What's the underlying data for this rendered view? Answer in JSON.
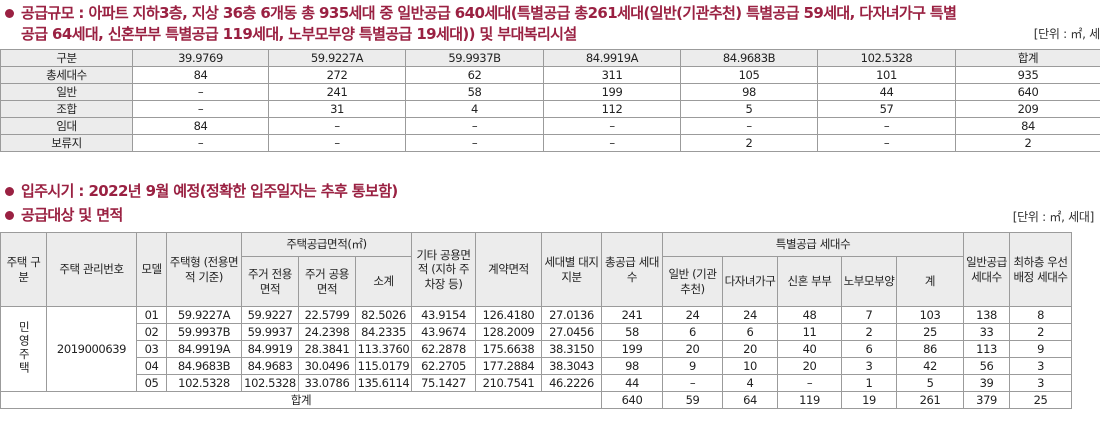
{
  "scale": {
    "line1": "공급규모 : 아파트 지하3층, 지상 36층 6개동 총 935세대 중 일반공급 640세대(특별공급 총261세대(일반(기관추천) 특별공급 59세대, 다자녀가구 특별",
    "line2": "공급 64세대, 신혼부부 특별공급 119세대, 노부모부양 특별공급 19세대)) 및 부대복리시설",
    "unit": "[단위 : ㎡, 세대]",
    "table": {
      "headers": [
        "구분",
        "39.9769",
        "59.9227A",
        "59.9937B",
        "84.9919A",
        "84.9683B",
        "102.5328",
        "합계"
      ],
      "rows": [
        [
          "총세대수",
          "84",
          "272",
          "62",
          "311",
          "105",
          "101",
          "935"
        ],
        [
          "일반",
          "–",
          "241",
          "58",
          "199",
          "98",
          "44",
          "640"
        ],
        [
          "조합",
          "–",
          "31",
          "4",
          "112",
          "5",
          "57",
          "209"
        ],
        [
          "임대",
          "84",
          "–",
          "–",
          "–",
          "–",
          "–",
          "84"
        ],
        [
          "보류지",
          "–",
          "–",
          "–",
          "–",
          "2",
          "–",
          "2"
        ]
      ]
    }
  },
  "move_in": "입주시기 : 2022년 9월 예정(정확한 입주일자는 추후 통보함)",
  "target": {
    "title": "공급대상 및 면적",
    "unit": "[단위 : ㎡, 세대]",
    "headers": {
      "type": "주택 구분",
      "mgmt_no": "주택 관리번호",
      "model": "모델",
      "house_type": "주택형 (전용면적 기준)",
      "supply_area": "주택공급면적(㎡)",
      "exclusive": "주거 전용면적",
      "common": "주거 공용면적",
      "subtotal": "소계",
      "other_common": "기타 공용면적 (지하 주차장 등)",
      "contract_area": "계약면적",
      "land_share": "세대별 대지지분",
      "total_supply": "총공급 세대수",
      "special": "특별공급 세대수",
      "sp_general": "일반 (기관 추천)",
      "sp_multi": "다자녀가구",
      "sp_newlywed": "신혼 부부",
      "sp_elderly": "노부모부양",
      "sp_total": "계",
      "general_supply": "일반공급 세대수",
      "lowest_floor": "최하층 우선배정 세대수"
    },
    "house_kind": "민영주택",
    "mgmt_no_value": "2019000639",
    "rows": [
      [
        "01",
        "59.9227A",
        "59.9227",
        "22.5799",
        "82.5026",
        "43.9154",
        "126.4180",
        "27.0136",
        "241",
        "24",
        "24",
        "48",
        "7",
        "103",
        "138",
        "8"
      ],
      [
        "02",
        "59.9937B",
        "59.9937",
        "24.2398",
        "84.2335",
        "43.9674",
        "128.2009",
        "27.0456",
        "58",
        "6",
        "6",
        "11",
        "2",
        "25",
        "33",
        "2"
      ],
      [
        "03",
        "84.9919A",
        "84.9919",
        "28.3841",
        "113.3760",
        "62.2878",
        "175.6638",
        "38.3150",
        "199",
        "20",
        "20",
        "40",
        "6",
        "86",
        "113",
        "9"
      ],
      [
        "04",
        "84.9683B",
        "84.9683",
        "30.0496",
        "115.0179",
        "62.2705",
        "177.2884",
        "38.3043",
        "98",
        "9",
        "10",
        "20",
        "3",
        "42",
        "56",
        "3"
      ],
      [
        "05",
        "102.5328",
        "102.5328",
        "33.0786",
        "135.6114",
        "75.1427",
        "210.7541",
        "46.2226",
        "44",
        "–",
        "4",
        "–",
        "1",
        "5",
        "39",
        "3"
      ]
    ],
    "sum_label": "합계",
    "sum": [
      "640",
      "59",
      "64",
      "119",
      "19",
      "261",
      "379",
      "25"
    ]
  }
}
